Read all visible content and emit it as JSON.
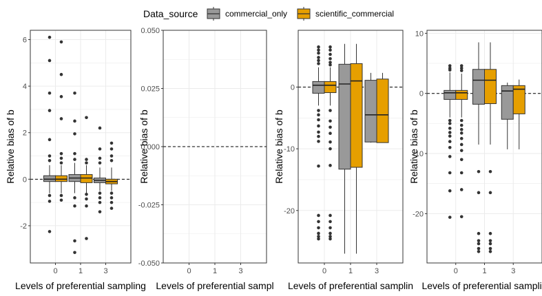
{
  "legend": {
    "title": "Data_source",
    "position": "top",
    "entries": [
      {
        "label": "commercial_only",
        "color": "#999999"
      },
      {
        "label": "scientific_commercial",
        "color": "#E69F00"
      }
    ]
  },
  "colors": {
    "commercial_only": "#999999",
    "scientific_commercial": "#E69F00",
    "panel_border": "#333333",
    "grid": "#ebebeb",
    "outlier": "#333333"
  },
  "chart_data": [
    {
      "type": "boxplot",
      "xlabel": "Levels of preferential sampling",
      "ylabel": "Relative bias of b",
      "categories": [
        "0",
        "1",
        "3"
      ],
      "ylim": [
        -3.6,
        6.4
      ],
      "yticks": [
        -2,
        0,
        2,
        4,
        6
      ],
      "grid": true,
      "reference_line": 0,
      "series": [
        {
          "name": "commercial_only",
          "boxes": [
            {
              "category": "0",
              "whisker_low": -0.6,
              "q1": -0.1,
              "median": 0.0,
              "q3": 0.15,
              "whisker_high": 0.6,
              "outliers": [
                6.1,
                5.1,
                3.7,
                2.95,
                1.7,
                1.0,
                0.8,
                -0.7,
                -0.95,
                -2.25
              ]
            },
            {
              "category": "1",
              "whisker_low": -0.6,
              "q1": -0.1,
              "median": 0.05,
              "q3": 0.2,
              "whisker_high": 0.7,
              "outliers": [
                3.7,
                2.5,
                1.95,
                1.1,
                0.85,
                -0.8,
                -1.15,
                -2.65,
                -3.15
              ]
            },
            {
              "category": "3",
              "whisker_low": -0.5,
              "q1": -0.15,
              "median": -0.05,
              "q3": 0.05,
              "whisker_high": 0.5,
              "outliers": [
                2.2,
                1.3,
                0.9,
                0.7,
                -0.6,
                -0.8,
                -1.0,
                -1.4
              ]
            }
          ]
        },
        {
          "name": "scientific_commercial",
          "boxes": [
            {
              "category": "0",
              "whisker_low": -0.6,
              "q1": -0.1,
              "median": 0.0,
              "q3": 0.15,
              "whisker_high": 0.6,
              "outliers": [
                5.9,
                4.5,
                3.55,
                2.6,
                1.1,
                0.9,
                0.7,
                -0.7,
                -0.9
              ]
            },
            {
              "category": "1",
              "whisker_low": -0.6,
              "q1": -0.15,
              "median": 0.05,
              "q3": 0.2,
              "whisker_high": 0.6,
              "outliers": [
                2.65,
                0.85,
                0.7,
                -0.65,
                -0.85,
                -1.15,
                -2.55
              ]
            },
            {
              "category": "3",
              "whisker_low": -0.5,
              "q1": -0.2,
              "median": -0.1,
              "q3": 0.0,
              "whisker_high": 0.5,
              "outliers": [
                1.55,
                1.3,
                1.0,
                0.8,
                -0.6,
                -0.8,
                -1.0,
                -1.25
              ]
            }
          ]
        }
      ]
    },
    {
      "type": "boxplot",
      "xlabel": "Levels of preferential sampl",
      "ylabel": "Relative bias of b",
      "categories": [
        "0",
        "1",
        "3"
      ],
      "ylim": [
        -0.05,
        0.05
      ],
      "yticks": [
        -0.05,
        -0.025,
        0,
        0.025,
        0.05
      ],
      "yticklabels": [
        "-0.050",
        "-0.025",
        "0.000",
        "0.025",
        "0.050"
      ],
      "grid": true,
      "reference_line": 0,
      "series": []
    },
    {
      "type": "boxplot",
      "xlabel": "Levels of preferential samplin",
      "ylabel": "Relative bias of b",
      "categories": [
        "0",
        "1",
        "3"
      ],
      "ylim": [
        -28.5,
        9.2
      ],
      "yticks": [
        -20,
        -10,
        0
      ],
      "grid": true,
      "reference_line": 0,
      "series": [
        {
          "name": "commercial_only",
          "boxes": [
            {
              "category": "0",
              "whisker_low": -3.0,
              "q1": -1.0,
              "median": 0.3,
              "q3": 0.9,
              "whisker_high": 3.2,
              "outliers": [
                6.5,
                6.0,
                5.5,
                4.8,
                4.3,
                3.8,
                -3.8,
                -4.5,
                -5.3,
                -6.3,
                -7.3,
                -8.0,
                -8.8,
                -12.8,
                -20.8,
                -21.8,
                -22.8,
                -23.7,
                -24.2,
                -24.6
              ]
            },
            {
              "category": "1",
              "whisker_low": -27.0,
              "q1": -13.3,
              "median": 0.5,
              "q3": 3.7,
              "whisker_high": 7.0,
              "outliers": []
            },
            {
              "category": "3",
              "whisker_low": -9.0,
              "q1": -8.9,
              "median": -4.5,
              "q3": 1.1,
              "whisker_high": 2.3,
              "outliers": []
            }
          ]
        },
        {
          "name": "scientific_commercial",
          "boxes": [
            {
              "category": "0",
              "whisker_low": -3.0,
              "q1": -0.9,
              "median": 0.3,
              "q3": 0.9,
              "whisker_high": 3.2,
              "outliers": [
                6.5,
                6.0,
                5.3,
                4.6,
                4.0,
                3.6,
                -3.8,
                -5.5,
                -6.5,
                -7.5,
                -8.9,
                -10.0,
                -12.7,
                -20.8,
                -21.8,
                -22.8,
                -23.7,
                -24.2,
                -24.6
              ]
            },
            {
              "category": "1",
              "whisker_low": -27.0,
              "q1": -13.0,
              "median": 1.0,
              "q3": 3.8,
              "whisker_high": 7.0,
              "outliers": []
            },
            {
              "category": "3",
              "whisker_low": -9.0,
              "q1": -9.0,
              "median": -4.5,
              "q3": 1.3,
              "whisker_high": 2.3,
              "outliers": []
            }
          ]
        }
      ]
    },
    {
      "type": "boxplot",
      "xlabel": "Levels of preferential samplin",
      "ylabel": "Relative bias of b",
      "categories": [
        "0",
        "1",
        "3"
      ],
      "ylim": [
        -28.2,
        10.5
      ],
      "yticks": [
        -20,
        -10,
        0,
        10
      ],
      "grid": true,
      "reference_line": 0,
      "series": [
        {
          "name": "commercial_only",
          "boxes": [
            {
              "category": "0",
              "whisker_low": -4.0,
              "q1": -1.0,
              "median": 0.1,
              "q3": 0.5,
              "whisker_high": 3.5,
              "outliers": [
                4.6,
                4.2,
                3.9,
                -4.5,
                -5.0,
                -5.8,
                -6.5,
                -7.1,
                -8.0,
                -9.0,
                -10.5,
                -13.2,
                -16.2,
                -20.6
              ]
            },
            {
              "category": "1",
              "whisker_low": -8.5,
              "q1": -1.8,
              "median": 2.2,
              "q3": 4.0,
              "whisker_high": 8.5,
              "outliers": [
                -13.0,
                -16.5,
                -23.3,
                -24.5,
                -25.0,
                -25.8,
                -26.3
              ]
            },
            {
              "category": "3",
              "whisker_low": -9.3,
              "q1": -4.3,
              "median": 0.4,
              "q3": 1.3,
              "whisker_high": 1.8,
              "outliers": []
            }
          ]
        },
        {
          "name": "scientific_commercial",
          "boxes": [
            {
              "category": "0",
              "whisker_low": -4.0,
              "q1": -1.0,
              "median": 0.1,
              "q3": 0.5,
              "whisker_high": 3.3,
              "outliers": [
                4.6,
                4.2,
                3.8,
                -4.5,
                -5.3,
                -6.0,
                -6.6,
                -7.5,
                -8.5,
                -9.5,
                -11.0,
                -13.2,
                -16.0,
                -20.5
              ]
            },
            {
              "category": "1",
              "whisker_low": -8.5,
              "q1": -1.7,
              "median": 2.2,
              "q3": 4.0,
              "whisker_high": 8.5,
              "outliers": [
                -13.0,
                -16.5,
                -23.3,
                -24.5,
                -25.0,
                -25.8,
                -26.3
              ]
            },
            {
              "category": "3",
              "whisker_low": -9.3,
              "q1": -3.4,
              "median": 0.7,
              "q3": 1.3,
              "whisker_high": 2.3,
              "outliers": []
            }
          ]
        }
      ]
    }
  ]
}
